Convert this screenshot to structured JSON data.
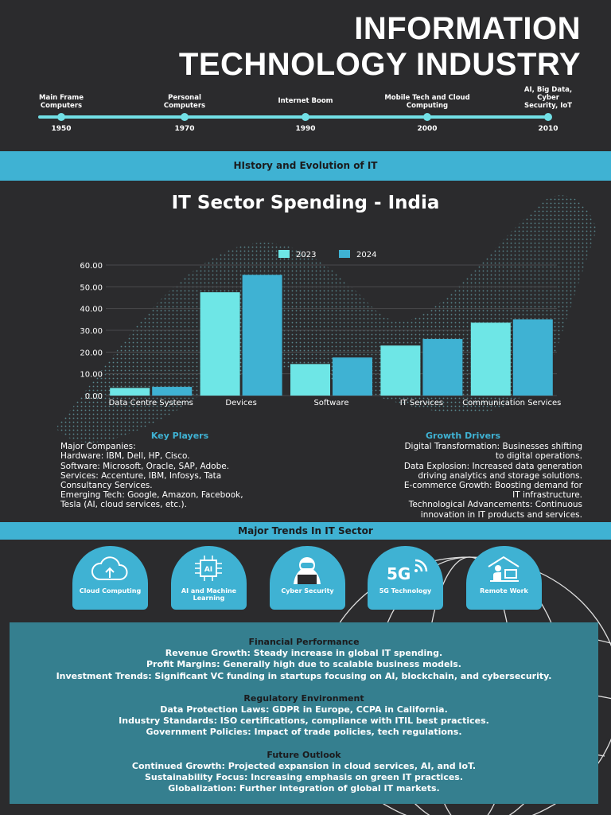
{
  "title": {
    "line1": "INFORMATION",
    "line2": "TECHNOLOGY INDUSTRY"
  },
  "timeline": [
    {
      "label": "Main Frame Computers",
      "year": "1950"
    },
    {
      "label": "Personal Computers",
      "year": "1970"
    },
    {
      "label": "Internet Boom",
      "year": "1990"
    },
    {
      "label": "Mobile Tech and Cloud Computing",
      "year": "2000"
    },
    {
      "label": "AI, Big Data, Cyber Security, IoT",
      "year": "2010"
    }
  ],
  "history_band": "HIstory and Evolution of IT",
  "chart_title": "IT Sector Spending - India",
  "colors": {
    "accent": "#3fb2d3",
    "light": "#6ee6e6",
    "bg": "#2b2b2d",
    "panel": "#357f8f"
  },
  "chart_data": {
    "type": "bar",
    "title": "IT Sector Spending - India",
    "categories": [
      "Data Centre Systems",
      "Devices",
      "Software",
      "IT Services",
      "Communication Services"
    ],
    "series": [
      {
        "name": "2023",
        "values": [
          3.5,
          47.5,
          14.5,
          23,
          33.5
        ]
      },
      {
        "name": "2024",
        "values": [
          4,
          55.5,
          17.5,
          26,
          35
        ]
      }
    ],
    "yticks": [
      "0.00",
      "10.00",
      "20.00",
      "30.00",
      "40.00",
      "50.00",
      "60.00"
    ],
    "ylim": [
      0,
      60
    ],
    "legend": "top-center"
  },
  "key_players": {
    "heading": "Key Players",
    "lines": [
      "Major Companies:",
      "Hardware: IBM, Dell, HP, Cisco.",
      "Software: Microsoft, Oracle, SAP, Adobe.",
      "Services: Accenture, IBM, Infosys, Tata",
      "Consultancy Services.",
      "Emerging Tech: Google, Amazon, Facebook,",
      "Tesla (AI, cloud services, etc.)."
    ]
  },
  "growth_drivers": {
    "heading": "Growth Drivers",
    "lines": [
      "Digital Transformation: Businesses shifting",
      "to digital operations.",
      "Data Explosion: Increased data generation",
      "driving analytics and storage solutions.",
      "E-commerce Growth: Boosting demand for",
      "IT infrastructure.",
      "Technological Advancements: Continuous",
      "innovation in IT products and services."
    ]
  },
  "trends_band": "Major Trends In IT Sector",
  "trends": [
    {
      "label": "Cloud Computing",
      "icon": "cloud-upload-icon"
    },
    {
      "label": "AI and Machine Learning",
      "icon": "ai-chip-icon"
    },
    {
      "label": "Cyber Security",
      "icon": "hacker-icon"
    },
    {
      "label": "5G Technology",
      "icon": "5g-icon"
    },
    {
      "label": "Remote Work",
      "icon": "remote-work-icon"
    }
  ],
  "trend_5g_glyph": "5G",
  "trend_ai_glyph": "AI",
  "financial": {
    "heading": "Financial Performance",
    "lines": [
      "Revenue Growth: Steady increase in global IT spending.",
      "Profit Margins: Generally high due to scalable business models.",
      "Investment Trends: Significant VC funding in startups focusing on AI, blockchain, and cybersecurity."
    ]
  },
  "regulatory": {
    "heading": "Regulatory Environment",
    "lines": [
      "Data Protection Laws: GDPR in Europe, CCPA in California.",
      "Industry Standards: ISO certifications, compliance with ITIL best practices.",
      "Government Policies: Impact of trade policies, tech regulations."
    ]
  },
  "outlook": {
    "heading": "Future Outlook",
    "lines": [
      "Continued Growth: Projected expansion in cloud services, AI, and IoT.",
      "Sustainability Focus: Increasing emphasis on green IT practices.",
      "Globalization: Further integration of global IT markets."
    ]
  }
}
